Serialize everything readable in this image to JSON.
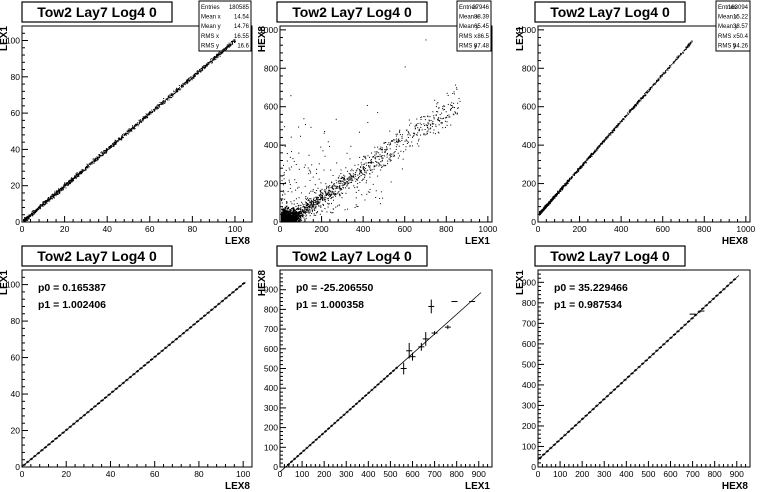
{
  "chart_data": [
    {
      "type": "scatter",
      "title": "Tow2 Lay7 Log4 0",
      "xlabel": "LEX8",
      "ylabel": "LEX1",
      "xlim": [
        0,
        108
      ],
      "ylim": [
        0,
        108
      ],
      "xticks": [
        "0",
        "20",
        "40",
        "60",
        "80",
        "100"
      ],
      "yticks": [
        "0",
        "20",
        "40",
        "60",
        "80",
        "100"
      ],
      "stats": [
        {
          "label": "Entries",
          "value": "180585"
        },
        {
          "label": "Mean x",
          "value": "14.54"
        },
        {
          "label": "Mean y",
          "value": "14.76"
        },
        {
          "label": "RMS x",
          "value": "16.55"
        },
        {
          "label": "RMS y",
          "value": "16.6"
        }
      ],
      "trend": {
        "slope": 1.0024,
        "intercept": 0.165,
        "xmax": 100
      },
      "outliers": []
    },
    {
      "type": "scatter",
      "title": "Tow2 Lay7 Log4 0",
      "xlabel": "LEX1",
      "ylabel": "HEX8",
      "xlim": [
        0,
        1020
      ],
      "ylim": [
        0,
        1020
      ],
      "xticks": [
        "0",
        "200",
        "400",
        "600",
        "800",
        "1000"
      ],
      "yticks": [
        "0",
        "200",
        "400",
        "600",
        "800",
        "1000"
      ],
      "stats": [
        {
          "label": "Entries",
          "value": "37946"
        },
        {
          "label": "Mean x",
          "value": "88.39"
        },
        {
          "label": "Mean y",
          "value": "65.45"
        },
        {
          "label": "RMS x",
          "value": "86.5"
        },
        {
          "label": "RMS y",
          "value": "87.48"
        }
      ],
      "trend": {
        "slope": 0.75,
        "intercept": -20,
        "xmax": 860
      },
      "outliers": [
        [
          150,
          300
        ],
        [
          230,
          420
        ],
        [
          320,
          360
        ],
        [
          420,
          520
        ],
        [
          600,
          810
        ],
        [
          50,
          660
        ],
        [
          120,
          510
        ],
        [
          700,
          950
        ],
        [
          380,
          470
        ],
        [
          270,
          310
        ]
      ]
    },
    {
      "type": "scatter",
      "title": "Tow2 Lay7 Log4 0",
      "xlabel": "HEX8",
      "ylabel": "LEX1",
      "xlim": [
        0,
        1020
      ],
      "ylim": [
        0,
        1020
      ],
      "xticks": [
        "0",
        "200",
        "400",
        "600",
        "800",
        "1000"
      ],
      "yticks": [
        "0",
        "200",
        "400",
        "600",
        "800",
        "1000"
      ],
      "stats": [
        {
          "label": "Entries",
          "value": "163094"
        },
        {
          "label": "Mean x",
          "value": "15.22"
        },
        {
          "label": "Mean y",
          "value": "38.57"
        },
        {
          "label": "RMS x",
          "value": "50.4"
        },
        {
          "label": "RMS y",
          "value": "54.26"
        }
      ],
      "trend": {
        "slope": 1.22,
        "intercept": 40,
        "xmax": 740
      },
      "outliers": []
    },
    {
      "type": "line",
      "title": "Tow2 Lay7 Log4 0",
      "xlabel": "LEX8",
      "ylabel": "LEX1",
      "xlim": [
        0,
        104
      ],
      "ylim": [
        0,
        108
      ],
      "xticks": [
        "0",
        "20",
        "40",
        "60",
        "80",
        "100"
      ],
      "yticks": [
        "0",
        "20",
        "40",
        "60",
        "80",
        "100"
      ],
      "fit_params": [
        "p0 = 0.165387",
        "p1 = 1.002406"
      ],
      "fit": {
        "p0": 0.165387,
        "p1": 1.002406,
        "xmin": 0,
        "xmax": 101
      },
      "profile": {
        "start": 1,
        "end": 101,
        "step": 1.6
      },
      "extra_points": []
    },
    {
      "type": "line",
      "title": "Tow2 Lay7 Log4 0",
      "xlabel": "LEX1",
      "ylabel": "HEX8",
      "xlim": [
        0,
        960
      ],
      "ylim": [
        0,
        1000
      ],
      "xticks": [
        "0",
        "100",
        "200",
        "300",
        "400",
        "500",
        "600",
        "700",
        "800",
        "900"
      ],
      "yticks": [
        "0",
        "100",
        "200",
        "300",
        "400",
        "500",
        "600",
        "700",
        "800",
        "900"
      ],
      "fit_params": [
        "p0 = -25.206550",
        "p1 = 1.000358"
      ],
      "fit": {
        "p0": -25.20655,
        "p1": 1.000358,
        "xmin": 0,
        "xmax": 910
      },
      "profile": {
        "start": 10,
        "end": 540,
        "step": 14
      },
      "extra_points": [
        {
          "x": 560,
          "y": 500,
          "ey": 30
        },
        {
          "x": 585,
          "y": 590,
          "ey": 40
        },
        {
          "x": 600,
          "y": 560,
          "ey": 20
        },
        {
          "x": 640,
          "y": 610,
          "ey": 20
        },
        {
          "x": 660,
          "y": 650,
          "ey": 35
        },
        {
          "x": 685,
          "y": 815,
          "ey": 35
        },
        {
          "x": 700,
          "y": 680,
          "ey": 10
        },
        {
          "x": 760,
          "y": 710,
          "ey": 10
        },
        {
          "x": 790,
          "y": 840,
          "ey": 0
        },
        {
          "x": 870,
          "y": 840,
          "ey": 0
        }
      ]
    },
    {
      "type": "line",
      "title": "Tow2 Lay7 Log4 0",
      "xlabel": "HEX8",
      "ylabel": "LEX1",
      "xlim": [
        0,
        960
      ],
      "ylim": [
        0,
        960
      ],
      "xticks": [
        "0",
        "100",
        "200",
        "300",
        "400",
        "500",
        "600",
        "700",
        "800",
        "900"
      ],
      "yticks": [
        "0",
        "100",
        "200",
        "300",
        "400",
        "500",
        "600",
        "700",
        "800",
        "900"
      ],
      "fit_params": [
        "p0 = 35.229466",
        "p1 = 0.987534"
      ],
      "fit": {
        "p0": 35.229466,
        "p1": 0.987534,
        "xmin": 0,
        "xmax": 910
      },
      "profile": {
        "start": 10,
        "end": 900,
        "step": 16
      },
      "extra_points": [
        {
          "x": 700,
          "y": 745,
          "ey": 0
        },
        {
          "x": 740,
          "y": 760,
          "ey": 0
        }
      ]
    }
  ]
}
